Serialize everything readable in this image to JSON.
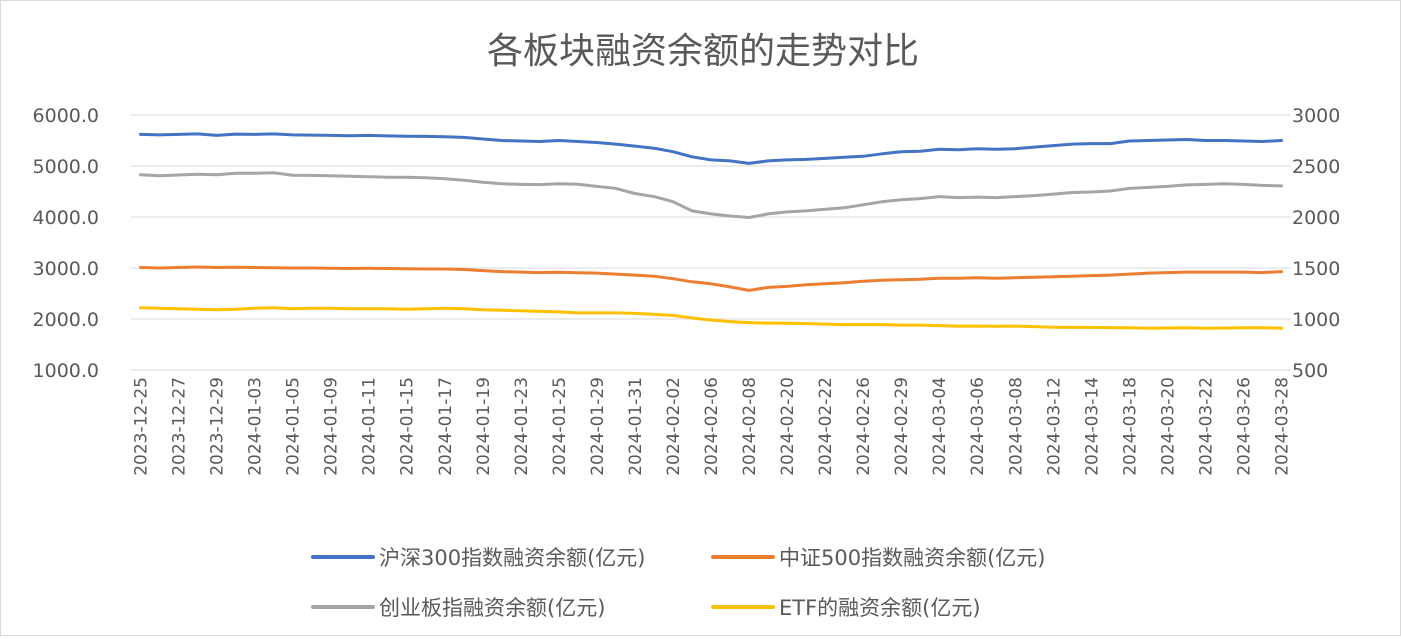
{
  "chart_data": {
    "type": "line",
    "title": "各板块融资余额的走势对比",
    "xlabel": "",
    "ylabel": "",
    "y_left": {
      "min": 1000,
      "max": 6000,
      "ticks": [
        "1000.0",
        "2000.0",
        "3000.0",
        "4000.0",
        "5000.0",
        "6000.0"
      ]
    },
    "y_right": {
      "min": 500,
      "max": 3000,
      "ticks": [
        "500",
        "1000",
        "1500",
        "2000",
        "2500",
        "3000"
      ]
    },
    "grid": true,
    "legend_position": "bottom",
    "x": [
      "2023-12-25",
      "2023-12-26",
      "2023-12-27",
      "2023-12-28",
      "2023-12-29",
      "2024-01-02",
      "2024-01-03",
      "2024-01-04",
      "2024-01-05",
      "2024-01-08",
      "2024-01-09",
      "2024-01-10",
      "2024-01-11",
      "2024-01-12",
      "2024-01-15",
      "2024-01-16",
      "2024-01-17",
      "2024-01-18",
      "2024-01-19",
      "2024-01-22",
      "2024-01-23",
      "2024-01-24",
      "2024-01-25",
      "2024-01-26",
      "2024-01-29",
      "2024-01-30",
      "2024-01-31",
      "2024-02-01",
      "2024-02-02",
      "2024-02-05",
      "2024-02-06",
      "2024-02-07",
      "2024-02-08",
      "2024-02-19",
      "2024-02-20",
      "2024-02-21",
      "2024-02-22",
      "2024-02-23",
      "2024-02-26",
      "2024-02-27",
      "2024-02-29",
      "2024-03-01",
      "2024-03-04",
      "2024-03-05",
      "2024-03-06",
      "2024-03-07",
      "2024-03-08",
      "2024-03-11",
      "2024-03-12",
      "2024-03-13",
      "2024-03-14",
      "2024-03-15",
      "2024-03-18",
      "2024-03-19",
      "2024-03-20",
      "2024-03-21",
      "2024-03-22",
      "2024-03-25",
      "2024-03-26",
      "2024-03-27",
      "2024-03-28"
    ],
    "x_tick_labels": [
      "2023-12-25",
      "2023-12-27",
      "2023-12-29",
      "2024-01-03",
      "2024-01-05",
      "2024-01-09",
      "2024-01-11",
      "2024-01-15",
      "2024-01-17",
      "2024-01-19",
      "2024-01-23",
      "2024-01-25",
      "2024-01-29",
      "2024-01-31",
      "2024-02-02",
      "2024-02-06",
      "2024-02-08",
      "2024-02-20",
      "2024-02-22",
      "2024-02-26",
      "2024-02-29",
      "2024-03-04",
      "2024-03-06",
      "2024-03-08",
      "2024-03-12",
      "2024-03-14",
      "2024-03-18",
      "2024-03-20",
      "2024-03-22",
      "2024-03-26",
      "2024-03-28"
    ],
    "series": [
      {
        "name": "沪深300指数融资余额(亿元)",
        "axis": "left",
        "color": "#4472c4",
        "values": [
          5620,
          5610,
          5620,
          5630,
          5600,
          5625,
          5620,
          5630,
          5610,
          5605,
          5600,
          5595,
          5600,
          5590,
          5585,
          5580,
          5575,
          5560,
          5530,
          5500,
          5490,
          5480,
          5500,
          5480,
          5460,
          5430,
          5390,
          5350,
          5280,
          5180,
          5120,
          5100,
          5050,
          5100,
          5120,
          5130,
          5150,
          5170,
          5190,
          5240,
          5280,
          5290,
          5330,
          5320,
          5340,
          5330,
          5340,
          5370,
          5400,
          5430,
          5440,
          5440,
          5490,
          5500,
          5510,
          5520,
          5500,
          5500,
          5490,
          5480,
          5500
        ]
      },
      {
        "name": "中证500指数融资余额(亿元)",
        "axis": "left",
        "color": "#ed7d31",
        "values": [
          3010,
          3000,
          3010,
          3020,
          3010,
          3015,
          3010,
          3005,
          3000,
          3000,
          2995,
          2990,
          2995,
          2990,
          2985,
          2980,
          2980,
          2970,
          2950,
          2930,
          2920,
          2910,
          2915,
          2905,
          2900,
          2880,
          2860,
          2840,
          2790,
          2730,
          2690,
          2630,
          2560,
          2620,
          2640,
          2670,
          2690,
          2710,
          2740,
          2760,
          2770,
          2780,
          2800,
          2800,
          2810,
          2800,
          2810,
          2820,
          2830,
          2840,
          2850,
          2860,
          2880,
          2900,
          2910,
          2920,
          2920,
          2920,
          2920,
          2910,
          2930
        ]
      },
      {
        "name": "创业板指融资余额(亿元)",
        "axis": "right",
        "color": "#a5a5a5",
        "values": [
          2415,
          2405,
          2412,
          2420,
          2415,
          2428,
          2428,
          2433,
          2410,
          2408,
          2405,
          2400,
          2395,
          2390,
          2390,
          2385,
          2375,
          2360,
          2340,
          2325,
          2320,
          2318,
          2325,
          2322,
          2300,
          2280,
          2230,
          2200,
          2150,
          2060,
          2030,
          2010,
          1995,
          2030,
          2050,
          2060,
          2075,
          2090,
          2120,
          2150,
          2170,
          2180,
          2200,
          2190,
          2195,
          2190,
          2200,
          2210,
          2225,
          2240,
          2245,
          2255,
          2280,
          2290,
          2300,
          2315,
          2320,
          2325,
          2320,
          2310,
          2305
        ]
      },
      {
        "name": "ETF的融资余额(亿元)",
        "axis": "right",
        "color": "#ffc000",
        "values": [
          1110,
          1105,
          1100,
          1095,
          1090,
          1095,
          1105,
          1110,
          1100,
          1105,
          1105,
          1100,
          1100,
          1100,
          1095,
          1100,
          1105,
          1100,
          1090,
          1085,
          1080,
          1075,
          1070,
          1060,
          1060,
          1060,
          1055,
          1045,
          1035,
          1010,
          990,
          975,
          965,
          960,
          958,
          955,
          950,
          945,
          945,
          945,
          940,
          940,
          935,
          930,
          930,
          928,
          930,
          925,
          920,
          918,
          918,
          916,
          915,
          910,
          912,
          914,
          910,
          912,
          914,
          915,
          910
        ]
      }
    ]
  }
}
